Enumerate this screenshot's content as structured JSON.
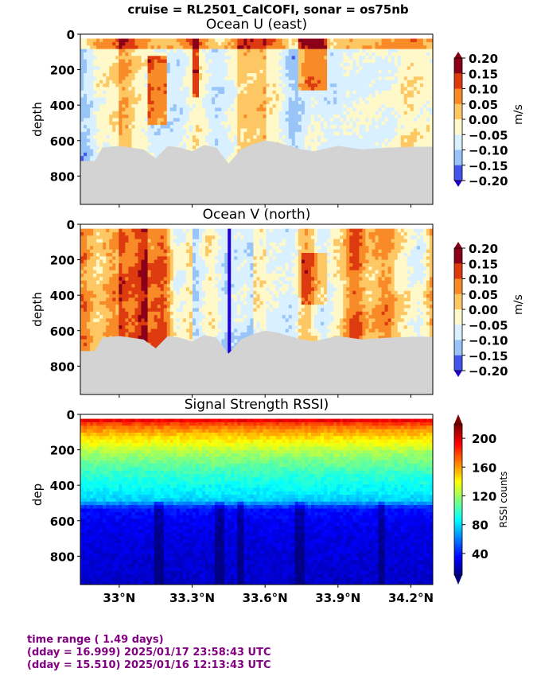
{
  "suptitle": "cruise = RL2501_CalCOFI,  sonar = os75nb",
  "colors": {
    "bathymetry": "#d3d3d3",
    "footer_text": "#800080"
  },
  "footer": {
    "line1": "time range ( 1.49 days)",
    "line2": "(dday = 16.999) 2025/01/17 23:58:43 UTC",
    "line3": "(dday = 15.510) 2025/01/16 12:13:43 UTC"
  },
  "chart_data": [
    {
      "type": "heatmap",
      "title": "Ocean U (east)",
      "xlabel": "",
      "ylabel": "depth",
      "colorbar_label": "m/s",
      "colormap": "red-yellow-white-blue diverging",
      "clim": [
        -0.2,
        0.2
      ],
      "colorbar_ticks": [
        "0.20",
        "0.15",
        "0.10",
        "0.05",
        "0.00",
        "−0.05",
        "−0.10",
        "−0.15",
        "−0.20"
      ],
      "y_ticks": [
        "0",
        "200",
        "400",
        "600",
        "800"
      ],
      "ylim": [
        960,
        0
      ],
      "x_ticks": [
        "33°N",
        "33.3°N",
        "33.6°N",
        "33.9°N",
        "34.2°N"
      ],
      "xlim": [
        32.84,
        34.29
      ],
      "x_tick_labels_shown": false,
      "bathymetry_depth_profile": {
        "x": [
          32.84,
          32.9,
          32.93,
          33.0,
          33.05,
          33.1,
          33.15,
          33.2,
          33.25,
          33.3,
          33.35,
          33.4,
          33.45,
          33.5,
          33.55,
          33.6,
          33.65,
          33.7,
          33.75,
          33.8,
          33.9,
          34.0,
          34.1,
          34.2,
          34.29
        ],
        "depth": [
          715,
          715,
          640,
          630,
          640,
          650,
          700,
          630,
          640,
          660,
          625,
          640,
          730,
          650,
          620,
          600,
          610,
          630,
          650,
          660,
          630,
          650,
          640,
          635,
          635
        ]
      }
    },
    {
      "type": "heatmap",
      "title": "Ocean V (north)",
      "xlabel": "",
      "ylabel": "depth",
      "colorbar_label": "m/s",
      "colormap": "red-yellow-white-blue diverging",
      "clim": [
        -0.2,
        0.2
      ],
      "colorbar_ticks": [
        "0.20",
        "0.15",
        "0.10",
        "0.05",
        "0.00",
        "−0.05",
        "−0.10",
        "−0.15",
        "−0.20"
      ],
      "y_ticks": [
        "0",
        "200",
        "400",
        "600",
        "800"
      ],
      "ylim": [
        960,
        0
      ],
      "x_ticks": [
        "33°N",
        "33.3°N",
        "33.6°N",
        "33.9°N",
        "34.2°N"
      ],
      "xlim": [
        32.84,
        34.29
      ],
      "x_tick_labels_shown": false,
      "bathymetry_depth_profile": {
        "x": [
          32.84,
          32.9,
          32.93,
          33.0,
          33.05,
          33.1,
          33.15,
          33.2,
          33.25,
          33.3,
          33.35,
          33.4,
          33.45,
          33.5,
          33.55,
          33.6,
          33.65,
          33.7,
          33.75,
          33.8,
          33.9,
          34.0,
          34.1,
          34.2,
          34.29
        ],
        "depth": [
          715,
          715,
          640,
          630,
          640,
          650,
          700,
          630,
          640,
          660,
          625,
          640,
          730,
          650,
          620,
          600,
          610,
          630,
          650,
          660,
          630,
          650,
          640,
          635,
          635
        ]
      }
    },
    {
      "type": "heatmap",
      "title": "Signal Strength RSSI)",
      "xlabel": "",
      "ylabel": "dep",
      "colorbar_label": "RSSI counts",
      "colormap": "jet",
      "clim": [
        10,
        220
      ],
      "colorbar_ticks": [
        "200",
        "160",
        "120",
        "80",
        "40"
      ],
      "y_ticks": [
        "0",
        "200",
        "400",
        "600",
        "800"
      ],
      "ylim": [
        960,
        0
      ],
      "x_ticks": [
        "33°N",
        "33.3°N",
        "33.6°N",
        "33.9°N",
        "34.2°N"
      ],
      "xlim": [
        32.84,
        34.29
      ],
      "x_tick_labels_shown": true,
      "rssi_vs_depth": {
        "depth": [
          20,
          50,
          100,
          150,
          200,
          260,
          320,
          380,
          440,
          480,
          520,
          600,
          700,
          800,
          960
        ],
        "rssi": [
          200,
          175,
          155,
          140,
          125,
          112,
          100,
          92,
          85,
          78,
          40,
          33,
          30,
          28,
          25
        ]
      }
    }
  ]
}
